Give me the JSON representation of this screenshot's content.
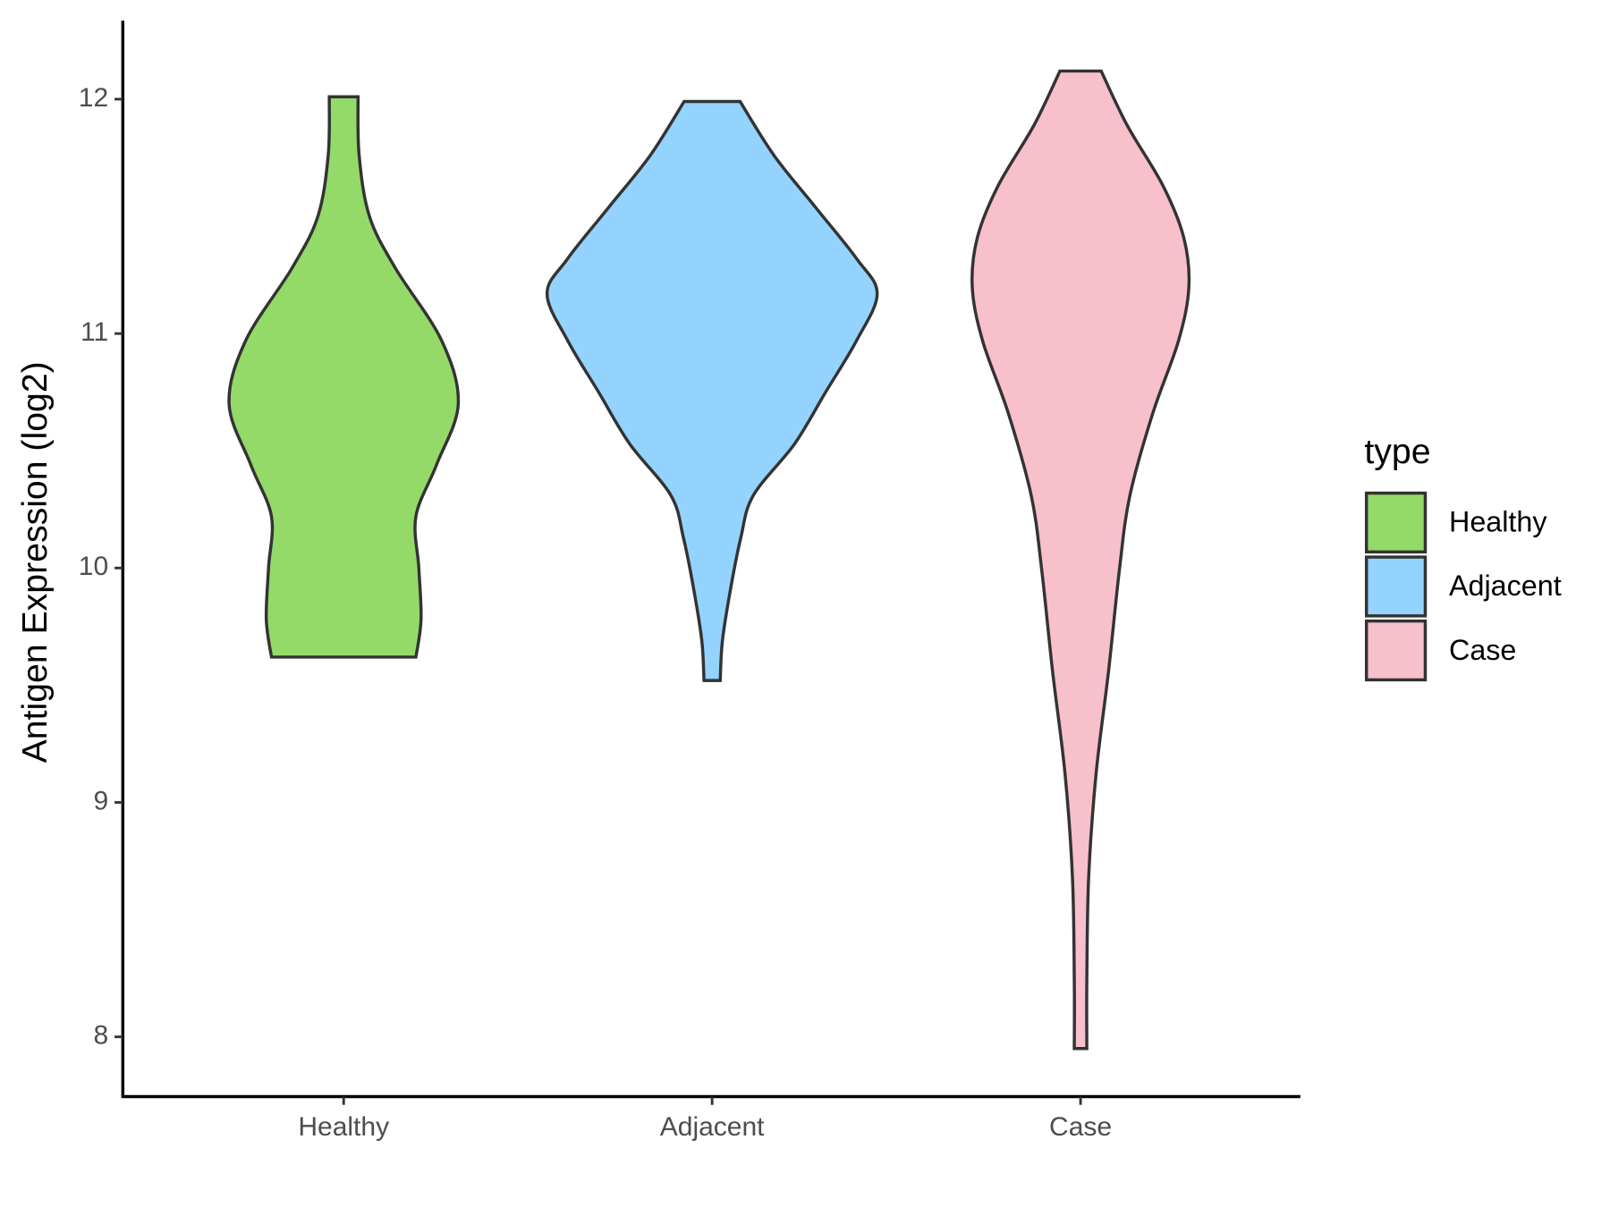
{
  "chart_data": {
    "type": "violin",
    "y_label": "Antigen Expression (log2)",
    "categories": [
      "Healthy",
      "Adjacent",
      "Case"
    ],
    "ylim": [
      7.745,
      12.335
    ],
    "yticks": [
      8,
      9,
      10,
      11,
      12
    ],
    "legend_title": "type",
    "legend_position": "right",
    "series": [
      {
        "name": "Healthy",
        "color": "#93da69",
        "y": [
          12.01,
          11.76,
          11.5,
          11.28,
          10.97,
          10.7,
          10.44,
          10.22,
          10.0,
          9.78,
          9.62
        ],
        "widths": [
          0.039,
          0.042,
          0.07,
          0.14,
          0.266,
          0.311,
          0.252,
          0.196,
          0.204,
          0.21,
          0.196
        ]
      },
      {
        "name": "Adjacent",
        "color": "#93d3fe",
        "y": [
          11.99,
          11.76,
          11.54,
          11.32,
          11.17,
          10.97,
          10.75,
          10.53,
          10.31,
          10.13,
          9.91,
          9.69,
          9.52
        ],
        "widths": [
          0.076,
          0.168,
          0.28,
          0.392,
          0.448,
          0.392,
          0.308,
          0.224,
          0.112,
          0.078,
          0.05,
          0.028,
          0.022
        ]
      },
      {
        "name": "Case",
        "color": "#f7c0cb",
        "y": [
          12.12,
          11.89,
          11.63,
          11.41,
          11.2,
          10.97,
          10.66,
          10.31,
          10.0,
          9.56,
          9.12,
          8.68,
          8.24,
          7.95
        ],
        "widths": [
          0.056,
          0.126,
          0.224,
          0.28,
          0.294,
          0.266,
          0.196,
          0.134,
          0.106,
          0.076,
          0.042,
          0.022,
          0.017,
          0.017
        ]
      }
    ]
  }
}
